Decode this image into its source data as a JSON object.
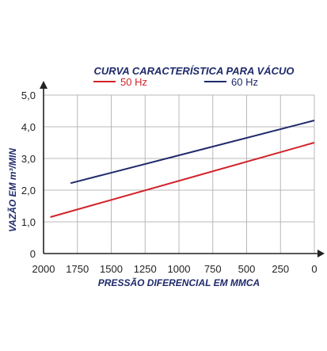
{
  "chart_data": {
    "type": "line",
    "title": "CURVA CARACTERÍSTICA PARA VÁCUO",
    "xlabel": "PRESSÃO DIFERENCIAL EM MMCA",
    "ylabel": "VAZÃO EM m³/MIN",
    "xlim": [
      2000,
      0
    ],
    "ylim": [
      0,
      5
    ],
    "x_reversed": true,
    "grid": true,
    "legend_placement": "top",
    "x_ticks": [
      2000,
      1750,
      1500,
      1250,
      1000,
      750,
      500,
      250,
      0
    ],
    "x_tick_labels": [
      "2000",
      "1750",
      "1500",
      "1250",
      "1000",
      "750",
      "500",
      "250",
      "0"
    ],
    "y_ticks": [
      0,
      1,
      2,
      3,
      4,
      5
    ],
    "y_tick_labels": [
      "0",
      "1,0",
      "2,0",
      "3,0",
      "4,0",
      "5,0"
    ],
    "series": [
      {
        "name": "50 Hz",
        "color": "#d2232a",
        "x": [
          1950,
          0
        ],
        "y": [
          1.15,
          3.5
        ]
      },
      {
        "name": "60 Hz",
        "color": "#1f2a6b",
        "x": [
          1800,
          0
        ],
        "y": [
          2.22,
          4.2
        ]
      }
    ]
  },
  "colors": {
    "title": "#1f2a6b",
    "axis_label": "#1f2a6b",
    "axis": "#222222",
    "grid": "#b8b8b8",
    "tick_text": "#222222"
  }
}
